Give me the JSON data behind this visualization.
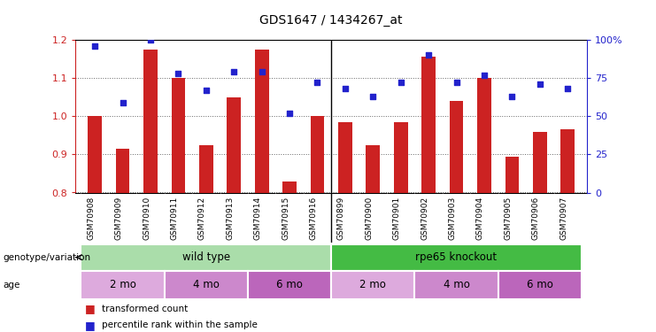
{
  "title": "GDS1647 / 1434267_at",
  "samples": [
    "GSM70908",
    "GSM70909",
    "GSM70910",
    "GSM70911",
    "GSM70912",
    "GSM70913",
    "GSM70914",
    "GSM70915",
    "GSM70916",
    "GSM70899",
    "GSM70900",
    "GSM70901",
    "GSM70902",
    "GSM70903",
    "GSM70904",
    "GSM70905",
    "GSM70906",
    "GSM70907"
  ],
  "transformed_count": [
    1.0,
    0.915,
    1.175,
    1.1,
    0.925,
    1.05,
    1.175,
    0.83,
    1.0,
    0.985,
    0.925,
    0.985,
    1.155,
    1.04,
    1.1,
    0.895,
    0.96,
    0.965
  ],
  "percentile_rank": [
    96,
    59,
    100,
    78,
    67,
    79,
    79,
    52,
    72,
    68,
    63,
    72,
    90,
    72,
    77,
    63,
    71,
    68
  ],
  "ylim_left": [
    0.8,
    1.2
  ],
  "ylim_right": [
    0,
    100
  ],
  "yticks_left": [
    0.8,
    0.9,
    1.0,
    1.1,
    1.2
  ],
  "yticks_right": [
    0,
    25,
    50,
    75,
    100
  ],
  "bar_color": "#cc2222",
  "dot_color": "#2222cc",
  "bar_width": 0.5,
  "genotype_groups": [
    {
      "label": "wild type",
      "start": 0,
      "end": 9,
      "color": "#aaddaa"
    },
    {
      "label": "rpe65 knockout",
      "start": 9,
      "end": 18,
      "color": "#44bb44"
    }
  ],
  "age_groups": [
    {
      "label": "2 mo",
      "start": 0,
      "end": 3,
      "color": "#ddaadd"
    },
    {
      "label": "4 mo",
      "start": 3,
      "end": 6,
      "color": "#cc88cc"
    },
    {
      "label": "6 mo",
      "start": 6,
      "end": 9,
      "color": "#bb66bb"
    },
    {
      "label": "2 mo",
      "start": 9,
      "end": 12,
      "color": "#ddaadd"
    },
    {
      "label": "4 mo",
      "start": 12,
      "end": 15,
      "color": "#cc88cc"
    },
    {
      "label": "6 mo",
      "start": 15,
      "end": 18,
      "color": "#bb66bb"
    }
  ],
  "legend_items": [
    {
      "label": "transformed count",
      "color": "#cc2222"
    },
    {
      "label": "percentile rank within the sample",
      "color": "#2222cc"
    }
  ],
  "background_color": "#ffffff",
  "xticklabel_bg": "#cccccc"
}
